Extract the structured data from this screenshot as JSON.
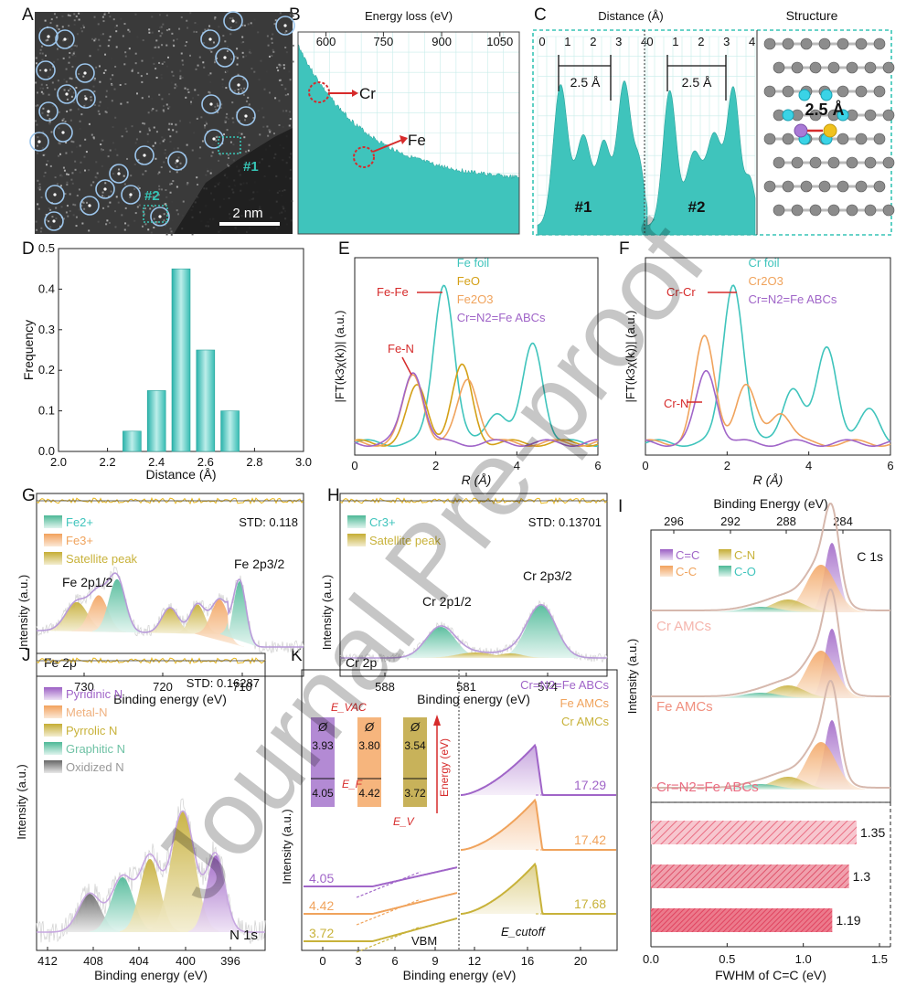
{
  "panel_letters": [
    "A",
    "B",
    "C",
    "D",
    "E",
    "F",
    "G",
    "H",
    "I",
    "J",
    "K"
  ],
  "watermark": "Journal Pre-proof",
  "colors": {
    "teal": "#3fc4bc",
    "teal_dark": "#2aa39b",
    "red": "#d62b2b",
    "purple": "#a065c8",
    "orange": "#f0a35c",
    "olive": "#c8b23a",
    "green": "#6fc2a5",
    "gray": "#999999",
    "pink": "#ea6d82",
    "gold": "#e8b821"
  },
  "panelA": {
    "scale_label": "2 nm",
    "site1": "#1",
    "site2": "#2"
  },
  "panelB": {
    "xlabel": "Energy loss (eV)",
    "ticks": [
      "600",
      "750",
      "900",
      "1050"
    ],
    "labels": {
      "cr": "Cr",
      "fe": "Fe"
    }
  },
  "panelC": {
    "xlabel": "Distance (Å)",
    "ticks": [
      "0",
      "1",
      "2",
      "3",
      "4"
    ],
    "dist_label": "2.5 Å",
    "site1": "#1",
    "site2": "#2",
    "structure_title": "Structure",
    "structure_dist": "2.5 Å"
  },
  "chart_data": [
    {
      "panel": "D",
      "type": "bar",
      "categories": [
        "2.3",
        "2.4",
        "2.5",
        "2.6",
        "2.7"
      ],
      "values": [
        0.05,
        0.15,
        0.45,
        0.25,
        0.1
      ],
      "xlabel": "Distance (Å)",
      "ylabel": "Frequency",
      "xlim": [
        2.0,
        3.0
      ],
      "ylim": [
        0,
        0.5
      ],
      "xticks": [
        "2.0",
        "2.2",
        "2.4",
        "2.6",
        "2.8",
        "3.0"
      ],
      "yticks": [
        "0.0",
        "0.1",
        "0.2",
        "0.3",
        "0.4",
        "0.5"
      ]
    },
    {
      "panel": "E",
      "type": "line",
      "xlabel": "R (Å)",
      "ylabel": "|FT(k3χ(k))| (a.u.)",
      "xlim": [
        0,
        6
      ],
      "xticks": [
        "0",
        "2",
        "4",
        "6"
      ],
      "legend": [
        "Fe foil",
        "FeO",
        "Fe2O3",
        "Cr=N2=Fe ABCs"
      ],
      "annotations": [
        "Fe-Fe",
        "Fe-N"
      ],
      "series": [
        {
          "name": "Fe foil",
          "peaks": [
            [
              2.2,
              1.0
            ],
            [
              4.4,
              0.62
            ],
            [
              3.5,
              0.2
            ]
          ]
        },
        {
          "name": "FeO",
          "peaks": [
            [
              1.55,
              0.35
            ],
            [
              2.65,
              0.47
            ]
          ]
        },
        {
          "name": "Fe2O3",
          "peaks": [
            [
              1.45,
              0.42
            ],
            [
              2.8,
              0.4
            ]
          ]
        },
        {
          "name": "Cr=N2=Fe ABCs",
          "peaks": [
            [
              1.45,
              0.45
            ]
          ]
        }
      ]
    },
    {
      "panel": "F",
      "type": "line",
      "xlabel": "R (Å)",
      "ylabel": "|FT(k3χ(k))| (a.u.)",
      "xlim": [
        0,
        6
      ],
      "xticks": [
        "0",
        "2",
        "4",
        "6"
      ],
      "legend": [
        "Cr foil",
        "Cr2O3",
        "Cr=N2=Fe ABCs"
      ],
      "annotations": [
        "Cr-Cr",
        "Cr-N"
      ],
      "series": [
        {
          "name": "Cr foil",
          "peaks": [
            [
              2.15,
              1.0
            ],
            [
              4.45,
              0.6
            ],
            [
              3.6,
              0.35
            ],
            [
              5.5,
              0.2
            ]
          ]
        },
        {
          "name": "Cr2O3",
          "peaks": [
            [
              1.45,
              0.65
            ],
            [
              2.45,
              0.35
            ],
            [
              3.3,
              0.2
            ]
          ]
        },
        {
          "name": "Cr=N2=Fe ABCs",
          "peaks": [
            [
              1.5,
              0.45
            ]
          ]
        }
      ]
    },
    {
      "panel": "G",
      "type": "area",
      "xlabel": "Binding energy (eV)",
      "ylabel": "Intensity (a.u.)",
      "xticks": [
        "730",
        "720",
        "710"
      ],
      "std": "STD: 0.118",
      "legend": [
        "Fe2+",
        "Fe3+",
        "Satellite peak"
      ],
      "labels": [
        "Fe 2p1/2",
        "Fe 2p3/2",
        "Fe 2p"
      ]
    },
    {
      "panel": "H",
      "type": "area",
      "xlabel": "Binding energy (eV)",
      "ylabel": "Intensity (a.u.)",
      "xticks": [
        "588",
        "581",
        "574"
      ],
      "std": "STD: 0.13701",
      "legend": [
        "Cr3+",
        "Satellite peak"
      ],
      "labels": [
        "Cr 2p1/2",
        "Cr 2p3/2",
        "Cr 2p"
      ]
    },
    {
      "panel": "I",
      "type": "area",
      "xlabel_top": "Binding Energy (eV)",
      "ylabel": "Intensity (a.u.)",
      "xticks_top": [
        "296",
        "292",
        "288",
        "284"
      ],
      "legend": [
        "C=C",
        "C-N",
        "C-C",
        "C-O"
      ],
      "labels": [
        "C 1s",
        "Cr AMCs",
        "Fe AMCs",
        "Cr=N2=Fe ABCs"
      ]
    },
    {
      "panel": "I-bars",
      "type": "bar",
      "xlabel": "FWHM of C=C (eV)",
      "xticks": [
        "0.0",
        "0.5",
        "1.0",
        "1.5"
      ],
      "xlim": [
        0,
        1.5
      ],
      "categories": [
        "Cr AMCs",
        "Fe AMCs",
        "Cr=N2=Fe ABCs"
      ],
      "values": [
        1.35,
        1.3,
        1.19
      ],
      "value_labels": [
        "1.35",
        "1.3",
        "1.19"
      ]
    },
    {
      "panel": "J",
      "type": "area",
      "xlabel": "Binding energy (eV)",
      "ylabel": "Intensity (a.u.)",
      "xticks": [
        "412",
        "408",
        "404",
        "400",
        "396"
      ],
      "std": "STD: 0.16287",
      "legend": [
        "Pyridinic N",
        "Metal-N",
        "Pyrrolic N",
        "Graphitic N",
        "Oxidized N"
      ],
      "labels": [
        "N 1s"
      ]
    },
    {
      "panel": "K",
      "type": "line",
      "xlabel": "Binding energy (eV)",
      "ylabel": "Intensity (a.u.)",
      "xticks_left": [
        "0",
        "3",
        "6",
        "9"
      ],
      "xticks_right": [
        "12",
        "16",
        "20"
      ],
      "legend": [
        "Cr=N2=Fe ABCs",
        "Fe AMCs",
        "Cr AMCs"
      ],
      "vbm_values": [
        "4.05",
        "4.42",
        "3.72"
      ],
      "cutoff_values": [
        "17.29",
        "17.42",
        "17.68"
      ],
      "work_function": [
        {
          "phi": "3.93",
          "vb": "4.05"
        },
        {
          "phi": "3.80",
          "vb": "4.42"
        },
        {
          "phi": "3.54",
          "vb": "3.72"
        }
      ],
      "labels": {
        "evac": "E_VAC",
        "ef": "E_F",
        "ev": "E_V",
        "phi": "Ø",
        "energy": "Energy (eV)",
        "vbm": "VBM",
        "ecut": "E_cutoff"
      }
    }
  ]
}
